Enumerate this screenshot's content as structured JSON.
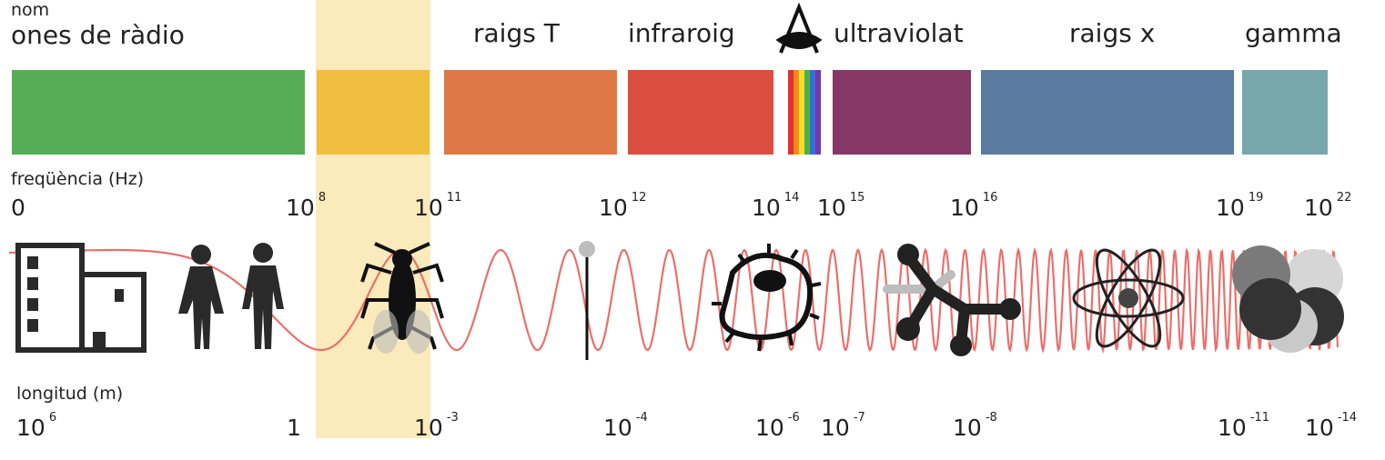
{
  "header": {
    "nom_label": "nom"
  },
  "bands": [
    {
      "key": "radio",
      "name": "ones de ràdio",
      "color": "#57ad54"
    },
    {
      "key": "micro",
      "name": "",
      "color": "#f0bf3f"
    },
    {
      "key": "t",
      "name": "raigs T",
      "color": "#e07846"
    },
    {
      "key": "ir",
      "name": "infraroig",
      "color": "#db4f40"
    },
    {
      "key": "visible",
      "name": "",
      "colors": [
        "#e62e2e",
        "#f28a1e",
        "#f6df2a",
        "#4bb24b",
        "#3a6fd1",
        "#6e3ab0"
      ]
    },
    {
      "key": "uv",
      "name": "ultraviolat",
      "color": "#853866"
    },
    {
      "key": "xray",
      "name": "raigs x",
      "color": "#5b7aa0"
    },
    {
      "key": "gamma",
      "name": "gamma",
      "color": "#77a7ab"
    }
  ],
  "frequency": {
    "label": "freqüència (Hz)",
    "ticks": [
      {
        "base": "0",
        "exp": ""
      },
      {
        "base": "10",
        "exp": "8"
      },
      {
        "base": "10",
        "exp": "11"
      },
      {
        "base": "10",
        "exp": "12"
      },
      {
        "base": "10",
        "exp": "14"
      },
      {
        "base": "10",
        "exp": "15"
      },
      {
        "base": "10",
        "exp": "16"
      },
      {
        "base": "10",
        "exp": "19"
      },
      {
        "base": "10",
        "exp": "22"
      }
    ]
  },
  "wavelength": {
    "label": "longitud (m)",
    "ticks": [
      {
        "base": "10",
        "exp": "6"
      },
      {
        "base": "1",
        "exp": ""
      },
      {
        "base": "10",
        "exp": "-3"
      },
      {
        "base": "10",
        "exp": "-4"
      },
      {
        "base": "10",
        "exp": "-6"
      },
      {
        "base": "10",
        "exp": "-7"
      },
      {
        "base": "10",
        "exp": "-8"
      },
      {
        "base": "10",
        "exp": "-11"
      },
      {
        "base": "10",
        "exp": "-14"
      }
    ]
  },
  "icons": [
    "building-icon",
    "woman-icon",
    "man-icon",
    "insect-icon",
    "pin-icon",
    "cell-icon",
    "molecule-icon",
    "atom-icon",
    "nucleus-icon",
    "eye-icon"
  ],
  "colors": {
    "highlight": "#fbeabb",
    "wave": "#e8706c",
    "icon": "#2a2a2a"
  }
}
